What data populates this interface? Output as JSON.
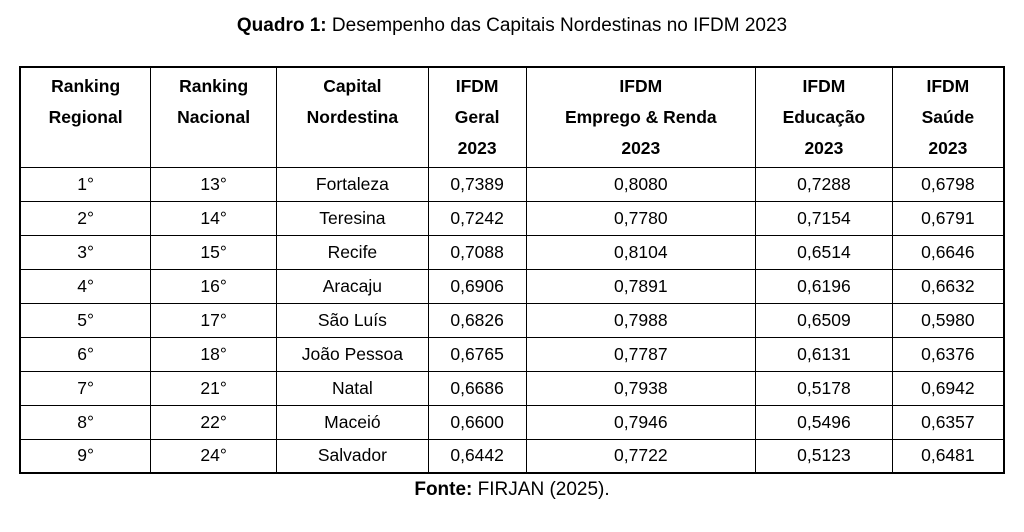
{
  "title": {
    "label_bold": "Quadro 1:",
    "label_rest": " Desempenho das Capitais Nordestinas no IFDM 2023"
  },
  "table": {
    "columns": [
      {
        "name": "ranking-regional",
        "lines": [
          "Ranking",
          "Regional"
        ]
      },
      {
        "name": "ranking-nacional",
        "lines": [
          "Ranking",
          "Nacional"
        ]
      },
      {
        "name": "capital-nordestina",
        "lines": [
          "Capital",
          "Nordestina"
        ]
      },
      {
        "name": "ifdm-geral",
        "lines": [
          "IFDM",
          "Geral",
          "2023"
        ]
      },
      {
        "name": "ifdm-emprego-renda",
        "lines": [
          "IFDM",
          "Emprego & Renda",
          "2023"
        ]
      },
      {
        "name": "ifdm-educacao",
        "lines": [
          "IFDM",
          "Educação",
          "2023"
        ]
      },
      {
        "name": "ifdm-saude",
        "lines": [
          "IFDM",
          "Saúde",
          "2023"
        ]
      }
    ],
    "rows": [
      [
        "1°",
        "13°",
        "Fortaleza",
        "0,7389",
        "0,8080",
        "0,7288",
        "0,6798"
      ],
      [
        "2°",
        "14°",
        "Teresina",
        "0,7242",
        "0,7780",
        "0,7154",
        "0,6791"
      ],
      [
        "3°",
        "15°",
        "Recife",
        "0,7088",
        "0,8104",
        "0,6514",
        "0,6646"
      ],
      [
        "4°",
        "16°",
        "Aracaju",
        "0,6906",
        "0,7891",
        "0,6196",
        "0,6632"
      ],
      [
        "5°",
        "17°",
        "São Luís",
        "0,6826",
        "0,7988",
        "0,6509",
        "0,5980"
      ],
      [
        "6°",
        "18°",
        "João Pessoa",
        "0,6765",
        "0,7787",
        "0,6131",
        "0,6376"
      ],
      [
        "7°",
        "21°",
        "Natal",
        "0,6686",
        "0,7938",
        "0,5178",
        "0,6942"
      ],
      [
        "8°",
        "22°",
        "Maceió",
        "0,6600",
        "0,7946",
        "0,5496",
        "0,6357"
      ],
      [
        "9°",
        "24°",
        "Salvador",
        "0,6442",
        "0,7722",
        "0,5123",
        "0,6481"
      ]
    ]
  },
  "footer": {
    "label_bold": "Fonte:",
    "label_rest": " FIRJAN (2025)."
  },
  "colors": {
    "text": "#000000",
    "border": "#000000",
    "background": "#ffffff"
  }
}
